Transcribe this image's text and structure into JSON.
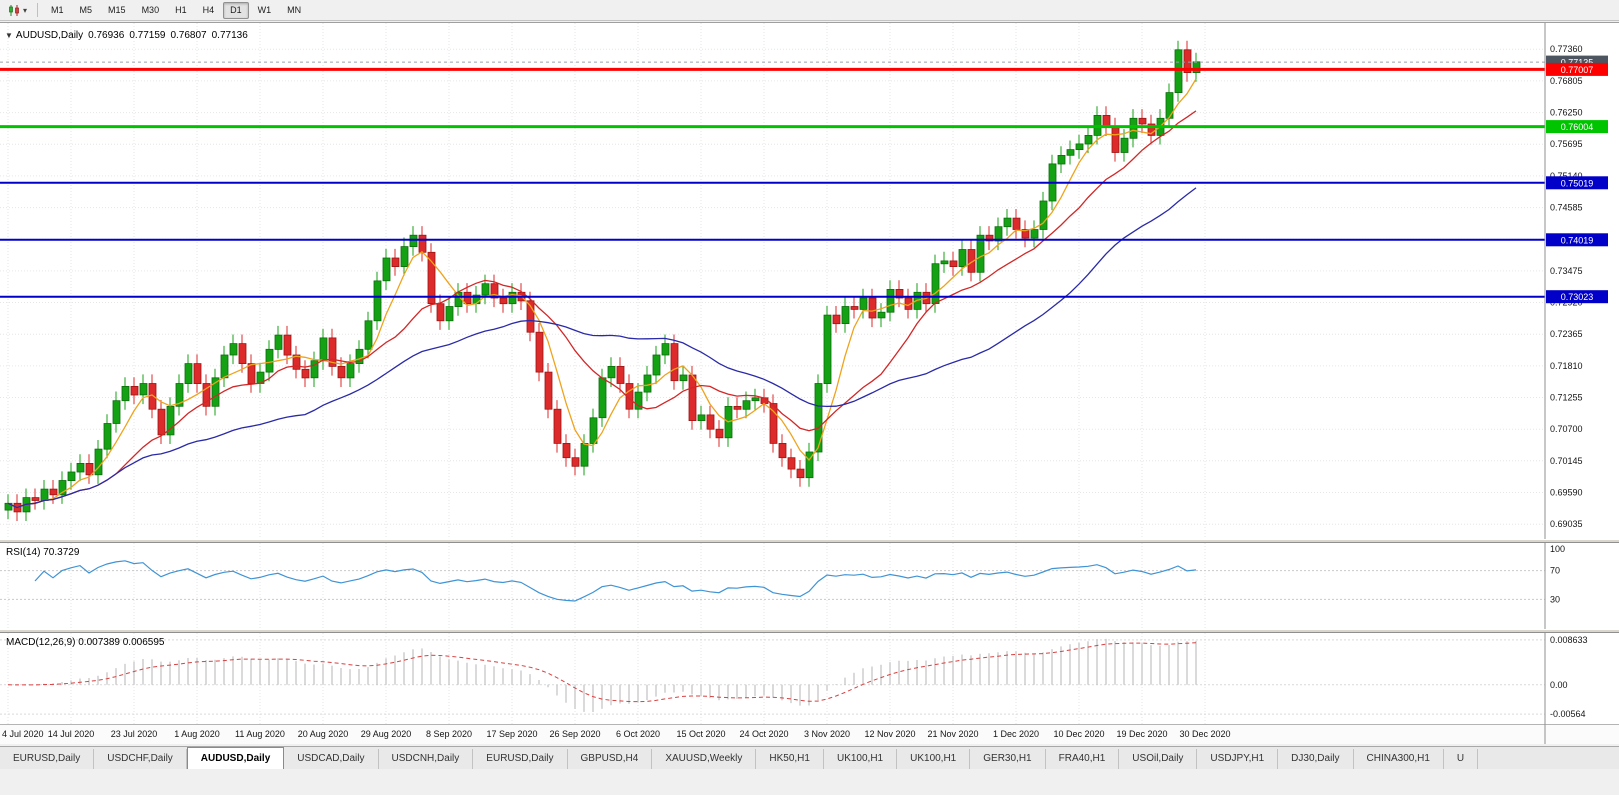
{
  "toolbar": {
    "chart_type_icon": "candlestick-chart-icon",
    "dropdown_glyph": "▾",
    "timeframes": [
      {
        "label": "M1",
        "active": false
      },
      {
        "label": "M5",
        "active": false
      },
      {
        "label": "M15",
        "active": false
      },
      {
        "label": "M30",
        "active": false
      },
      {
        "label": "H1",
        "active": false
      },
      {
        "label": "H4",
        "active": false
      },
      {
        "label": "D1",
        "active": true
      },
      {
        "label": "W1",
        "active": false
      },
      {
        "label": "MN",
        "active": false
      }
    ]
  },
  "chart": {
    "collapse_glyph": "▼",
    "header": {
      "symbol": "AUDUSD,Daily",
      "open": "0.76936",
      "high": "0.77159",
      "low": "0.76807",
      "close": "0.77136"
    }
  },
  "rsi": {
    "label": "RSI(14) 70.3729",
    "period": 14,
    "current_value": 70.3729,
    "color": "#3f94d6",
    "levels": [
      {
        "value": 100,
        "label": "100"
      },
      {
        "value": 70,
        "label": "70"
      },
      {
        "value": 30,
        "label": "30"
      }
    ]
  },
  "macd": {
    "label": "MACD(12,26,9) 0.007389 0.006595",
    "fast": 12,
    "slow": 26,
    "signal_period": 9,
    "hist_color": "#b6b6b6",
    "signal_color": "#d94040",
    "axis_labels": [
      {
        "value": 0.008633,
        "label": "0.008633"
      },
      {
        "value": 0,
        "label": "0.00"
      },
      {
        "value": -0.00564,
        "label": "-0.00564"
      }
    ]
  },
  "tabs": [
    {
      "label": "EURUSD,Daily",
      "active": false
    },
    {
      "label": "USDCHF,Daily",
      "active": false
    },
    {
      "label": "AUDUSD,Daily",
      "active": true
    },
    {
      "label": "USDCAD,Daily",
      "active": false
    },
    {
      "label": "USDCNH,Daily",
      "active": false
    },
    {
      "label": "EURUSD,Daily",
      "active": false
    },
    {
      "label": "GBPUSD,H4",
      "active": false
    },
    {
      "label": "XAUUSD,Weekly",
      "active": false
    },
    {
      "label": "HK50,H1",
      "active": false
    },
    {
      "label": "UK100,H1",
      "active": false
    },
    {
      "label": "UK100,H1",
      "active": false
    },
    {
      "label": "GER30,H1",
      "active": false
    },
    {
      "label": "FRA40,H1",
      "active": false
    },
    {
      "label": "USOil,Daily",
      "active": false
    },
    {
      "label": "USDJPY,H1",
      "active": false
    },
    {
      "label": "DJ30,Daily",
      "active": false
    },
    {
      "label": "CHINA300,H1",
      "active": false
    },
    {
      "label": "U",
      "active": false
    }
  ],
  "chart_data": {
    "type": "candlestick",
    "symbol": "AUDUSD",
    "timeframe": "Daily",
    "title": "AUDUSD,Daily",
    "y_ticks": [
      "0.77360",
      "0.76805",
      "0.76250",
      "0.75695",
      "0.75140",
      "0.74585",
      "0.74030",
      "0.73475",
      "0.72920",
      "0.72365",
      "0.71810",
      "0.71255",
      "0.70700",
      "0.70145",
      "0.69590",
      "0.69035"
    ],
    "x_tick_labels": [
      "4 Jul 2020",
      "14 Jul 2020",
      "23 Jul 2020",
      "1 Aug 2020",
      "11 Aug 2020",
      "20 Aug 2020",
      "29 Aug 2020",
      "8 Sep 2020",
      "17 Sep 2020",
      "26 Sep 2020",
      "6 Oct 2020",
      "15 Oct 2020",
      "24 Oct 2020",
      "3 Nov 2020",
      "12 Nov 2020",
      "21 Nov 2020",
      "1 Dec 2020",
      "10 Dec 2020",
      "19 Dec 2020",
      "30 Dec 2020"
    ],
    "x_tick_step": 7,
    "price_range": [
      0.69035,
      0.7736
    ],
    "closes": [
      0.694,
      0.6925,
      0.695,
      0.6945,
      0.6965,
      0.6955,
      0.698,
      0.6995,
      0.701,
      0.699,
      0.7035,
      0.708,
      0.712,
      0.7145,
      0.713,
      0.715,
      0.7105,
      0.706,
      0.711,
      0.715,
      0.7185,
      0.715,
      0.711,
      0.716,
      0.72,
      0.722,
      0.7185,
      0.715,
      0.717,
      0.721,
      0.7235,
      0.72,
      0.7175,
      0.716,
      0.719,
      0.723,
      0.718,
      0.716,
      0.7185,
      0.721,
      0.726,
      0.733,
      0.737,
      0.7355,
      0.739,
      0.741,
      0.738,
      0.729,
      0.726,
      0.7285,
      0.731,
      0.729,
      0.7305,
      0.7325,
      0.73,
      0.729,
      0.731,
      0.7295,
      0.724,
      0.717,
      0.7105,
      0.7045,
      0.702,
      0.7005,
      0.7045,
      0.709,
      0.716,
      0.718,
      0.715,
      0.7105,
      0.7135,
      0.7165,
      0.72,
      0.722,
      0.7155,
      0.7165,
      0.7085,
      0.7095,
      0.707,
      0.7055,
      0.711,
      0.7105,
      0.712,
      0.7125,
      0.7115,
      0.7045,
      0.702,
      0.7,
      0.6985,
      0.703,
      0.715,
      0.727,
      0.7255,
      0.7285,
      0.728,
      0.73,
      0.7265,
      0.7275,
      0.7315,
      0.73,
      0.728,
      0.731,
      0.729,
      0.736,
      0.7365,
      0.7355,
      0.7385,
      0.7345,
      0.741,
      0.74,
      0.7425,
      0.744,
      0.742,
      0.7405,
      0.742,
      0.747,
      0.7535,
      0.755,
      0.756,
      0.757,
      0.7585,
      0.762,
      0.76,
      0.7555,
      0.758,
      0.7615,
      0.7605,
      0.7585,
      0.7615,
      0.766,
      0.7735,
      0.7695,
      0.7714
    ],
    "ohlc_rule": {
      "open": "previous_close",
      "wick": 0.0016
    },
    "colors": {
      "bull": "#14a114",
      "bull_border": "#0b6e0b",
      "bear": "#dd2a2a",
      "bear_border": "#9c1515"
    },
    "moving_averages": [
      {
        "period": 5,
        "color": "#efa31d"
      },
      {
        "period": 13,
        "color": "#d22727"
      },
      {
        "period": 34,
        "color": "#2a2aa8"
      }
    ],
    "levels": [
      {
        "price": 0.77007,
        "label": "0.77007",
        "color": "#fe0000",
        "width": 3
      },
      {
        "price": 0.76004,
        "label": "0.76004",
        "color": "#00c400",
        "width": 3
      },
      {
        "price": 0.75019,
        "label": "0.75019",
        "color": "#0000c8",
        "width": 2
      },
      {
        "price": 0.74019,
        "label": "0.74019",
        "color": "#0000c8",
        "width": 2
      },
      {
        "price": 0.73023,
        "label": "0.73023",
        "color": "#0000c8",
        "width": 2
      }
    ],
    "current_bid": {
      "price": 0.77135,
      "label": "0.77135",
      "line_color": "#9aa2ac",
      "tag_color": "#4d5560"
    }
  }
}
